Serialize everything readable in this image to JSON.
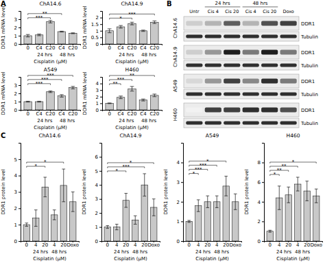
{
  "chart_data": [
    {
      "type": "bar",
      "title": "ChA14.6",
      "annotations": [
        "A"
      ],
      "y_label": "DDR1 mRNA level",
      "x_label": "Cisplatin (μM)",
      "categories": [
        "0",
        "C4",
        "C20",
        "C4",
        "C20"
      ],
      "values": [
        1.0,
        1.1,
        2.7,
        1.5,
        1.3
      ],
      "errors": [
        0.15,
        0.1,
        0.15,
        0.05,
        0.05
      ],
      "groups": [
        {
          "label": "24 hrs",
          "from": 1,
          "to": 2
        },
        {
          "label": "48 hrs",
          "from": 3,
          "to": 4
        }
      ],
      "significance": [
        {
          "label": "***",
          "from": 0,
          "to": 2
        },
        {
          "label": "**",
          "from": 0,
          "to": 3
        }
      ],
      "color": "#c8c8c8",
      "ylim": [
        0,
        4
      ],
      "yticks": [
        0,
        1,
        2,
        3
      ]
    },
    {
      "type": "bar",
      "title": "ChA14.9",
      "y_label": "DDR1 mRNA level",
      "x_label": "Cisplatin (μM)",
      "categories": [
        "0",
        "C4",
        "C20",
        "C4",
        "C20"
      ],
      "values": [
        1.0,
        1.3,
        1.55,
        1.0,
        1.65
      ],
      "errors": [
        0.15,
        0.1,
        0.1,
        0.05,
        0.1
      ],
      "groups": [
        {
          "label": "24 hrs",
          "from": 1,
          "to": 2
        },
        {
          "label": "48 hrs",
          "from": 3,
          "to": 4
        }
      ],
      "significance": [
        {
          "label": "*",
          "from": 0,
          "to": 2
        },
        {
          "label": "***",
          "from": 0,
          "to": 4
        }
      ],
      "color": "#c8c8c8",
      "ylim": [
        0,
        2.5
      ],
      "yticks": [
        0,
        0.5,
        1,
        1.5,
        2
      ]
    },
    {
      "type": "bar",
      "title": "A549",
      "y_label": "DDR1 mRNA level",
      "x_label": "Cisplatin (μM)",
      "categories": [
        "0",
        "C4",
        "C20",
        "C4",
        "C20"
      ],
      "values": [
        1.0,
        1.0,
        2.2,
        1.7,
        2.7
      ],
      "errors": [
        0.05,
        0.05,
        0.1,
        0.15,
        0.15
      ],
      "groups": [
        {
          "label": "24 hrs",
          "from": 1,
          "to": 2
        },
        {
          "label": "48 hrs",
          "from": 3,
          "to": 4
        }
      ],
      "significance": [
        {
          "label": "***",
          "from": 0,
          "to": 2
        },
        {
          "label": "***",
          "from": 0,
          "to": 3
        },
        {
          "label": "***",
          "from": 0,
          "to": 4
        }
      ],
      "color": "#c8c8c8",
      "ylim": [
        0,
        4
      ],
      "yticks": [
        0,
        1,
        2,
        3
      ]
    },
    {
      "type": "bar",
      "title": "H460",
      "y_label": "DDR1 mRNA level",
      "x_label": "Cisplatin (μM)",
      "categories": [
        "0",
        "C4",
        "C20",
        "C4",
        "C20"
      ],
      "values": [
        1.0,
        1.9,
        3.2,
        1.5,
        2.2
      ],
      "errors": [
        0.05,
        0.2,
        0.35,
        0.15,
        0.2
      ],
      "groups": [
        {
          "label": "24 hrs",
          "from": 1,
          "to": 2
        },
        {
          "label": "48 hrs",
          "from": 3,
          "to": 4
        }
      ],
      "significance": [
        {
          "label": "**",
          "from": 0,
          "to": 1
        },
        {
          "label": "***",
          "from": 0,
          "to": 2
        },
        {
          "label": "**",
          "from": 0,
          "to": 4
        }
      ],
      "color": "#c8c8c8",
      "ylim": [
        0,
        5
      ],
      "yticks": [
        0,
        1,
        2,
        3,
        4
      ]
    },
    {
      "type": "blot",
      "annotations": [
        "B"
      ],
      "groups": [
        {
          "label": "24 hrs",
          "from": 1,
          "to": 2
        },
        {
          "label": "48 hrs",
          "from": 3,
          "to": 4
        }
      ],
      "lanes": [
        "Untr",
        "Cis 4",
        "Cis 20",
        "Cis 4",
        "Cis 20",
        "Doxo"
      ],
      "blots": [
        {
          "cell_line": "ChA14.6",
          "rows": [
            {
              "name": "DDR1",
              "values": [
                0.3,
                0.4,
                0.7,
                0.4,
                0.75,
                0.8
              ]
            },
            {
              "name": "Tubulin",
              "values": [
                0.85,
                0.85,
                0.85,
                0.85,
                0.85,
                0.85
              ]
            }
          ]
        },
        {
          "cell_line": "ChA14.9",
          "rows": [
            {
              "name": "DDR1",
              "values": [
                0.3,
                0.5,
                0.9,
                0.6,
                0.9,
                0.6
              ]
            },
            {
              "name": "Tubulin",
              "values": [
                0.85,
                0.85,
                0.85,
                0.85,
                0.85,
                0.85
              ]
            }
          ]
        },
        {
          "cell_line": "A549",
          "rows": [
            {
              "name": "DDR1",
              "values": [
                0.25,
                0.5,
                0.8,
                0.55,
                0.85,
                0.6
              ]
            },
            {
              "name": "Tubulin",
              "values": [
                0.85,
                0.85,
                0.85,
                0.85,
                0.85,
                0.85
              ]
            }
          ]
        },
        {
          "cell_line": "H460",
          "rows": [
            {
              "name": "DDR1",
              "values": [
                0.1,
                0.8,
                0.8,
                0.85,
                0.85,
                0.75
              ]
            },
            {
              "name": "Tubulin",
              "values": [
                0.85,
                0.85,
                0.85,
                0.85,
                0.85,
                0.85
              ]
            }
          ]
        }
      ]
    },
    {
      "type": "bar",
      "title": "ChA14.6",
      "annotations": [
        "C"
      ],
      "y_label": "DDR1 protein level",
      "x_label": "Cisplatin (μM)",
      "categories": [
        "0",
        "4",
        "20",
        "4",
        "20",
        "Doxo"
      ],
      "values": [
        1.0,
        1.4,
        3.3,
        1.6,
        3.4,
        2.4
      ],
      "errors": [
        0.1,
        0.5,
        0.6,
        0.3,
        1.0,
        0.6
      ],
      "groups": [
        {
          "label": "24 hrs",
          "from": 1,
          "to": 2
        },
        {
          "label": "48 hrs",
          "from": 3,
          "to": 4
        }
      ],
      "significance": [
        {
          "label": "*",
          "from": 0,
          "to": 2
        },
        {
          "label": "*",
          "from": 0,
          "to": 4
        }
      ],
      "color": "#c8c8c8",
      "ylim": [
        0,
        6
      ],
      "yticks": [
        0,
        1,
        2,
        3,
        4,
        5
      ]
    },
    {
      "type": "bar",
      "title": "ChA14.9",
      "y_label": "DDR1 protein level",
      "x_label": "Cisplatin (μM)",
      "categories": [
        "0",
        "4",
        "20",
        "4",
        "20",
        "Doxo"
      ],
      "values": [
        1.0,
        1.0,
        2.9,
        1.5,
        4.0,
        2.4
      ],
      "errors": [
        0.1,
        0.2,
        0.5,
        0.3,
        0.8,
        0.6
      ],
      "groups": [
        {
          "label": "24 hrs",
          "from": 1,
          "to": 2
        },
        {
          "label": "48 hrs",
          "from": 3,
          "to": 4
        }
      ],
      "significance": [
        {
          "label": "*",
          "from": 0,
          "to": 2
        },
        {
          "label": "***",
          "from": 0,
          "to": 4
        },
        {
          "label": "*",
          "from": 0,
          "to": 5
        }
      ],
      "color": "#c8c8c8",
      "ylim": [
        0,
        7
      ],
      "yticks": [
        0,
        1,
        2,
        3,
        4,
        5,
        6
      ]
    },
    {
      "type": "bar",
      "title": "A549",
      "y_label": "DDR1 protein level",
      "x_label": "Cisplatin (μM)",
      "categories": [
        "0",
        "4",
        "20",
        "4",
        "20",
        "Doxo"
      ],
      "values": [
        1.0,
        1.8,
        2.0,
        2.0,
        2.8,
        2.0
      ],
      "errors": [
        0.05,
        0.3,
        0.3,
        0.3,
        0.5,
        0.4
      ],
      "groups": [
        {
          "label": "24 hrs",
          "from": 1,
          "to": 2
        },
        {
          "label": "48 hrs",
          "from": 3,
          "to": 4
        }
      ],
      "significance": [
        {
          "label": "*",
          "from": 0,
          "to": 1
        },
        {
          "label": "***",
          "from": 0,
          "to": 2
        },
        {
          "label": "***",
          "from": 0,
          "to": 3
        },
        {
          "label": "*",
          "from": 0,
          "to": 4
        }
      ],
      "color": "#c8c8c8",
      "ylim": [
        0,
        5
      ],
      "yticks": [
        0,
        1,
        2,
        3,
        4
      ]
    },
    {
      "type": "bar",
      "title": "H460",
      "y_label": "DDR1 protein level",
      "x_label": "Cisplatin (μM)",
      "categories": [
        "0",
        "4",
        "20",
        "4",
        "20",
        "Doxo"
      ],
      "values": [
        1.0,
        4.4,
        4.7,
        5.8,
        5.1,
        4.6
      ],
      "errors": [
        0.1,
        1.2,
        0.8,
        0.7,
        1.0,
        0.7
      ],
      "groups": [
        {
          "label": "24 hrs",
          "from": 1,
          "to": 2
        },
        {
          "label": "48 hrs",
          "from": 3,
          "to": 4
        }
      ],
      "significance": [
        {
          "label": "*",
          "from": 0,
          "to": 1
        },
        {
          "label": "**",
          "from": 0,
          "to": 2
        },
        {
          "label": "**",
          "from": 0,
          "to": 3
        },
        {
          "label": "*",
          "from": 0,
          "to": 5
        }
      ],
      "color": "#c8c8c8",
      "ylim": [
        0,
        10
      ],
      "yticks": [
        0,
        2,
        4,
        6,
        8
      ]
    }
  ]
}
